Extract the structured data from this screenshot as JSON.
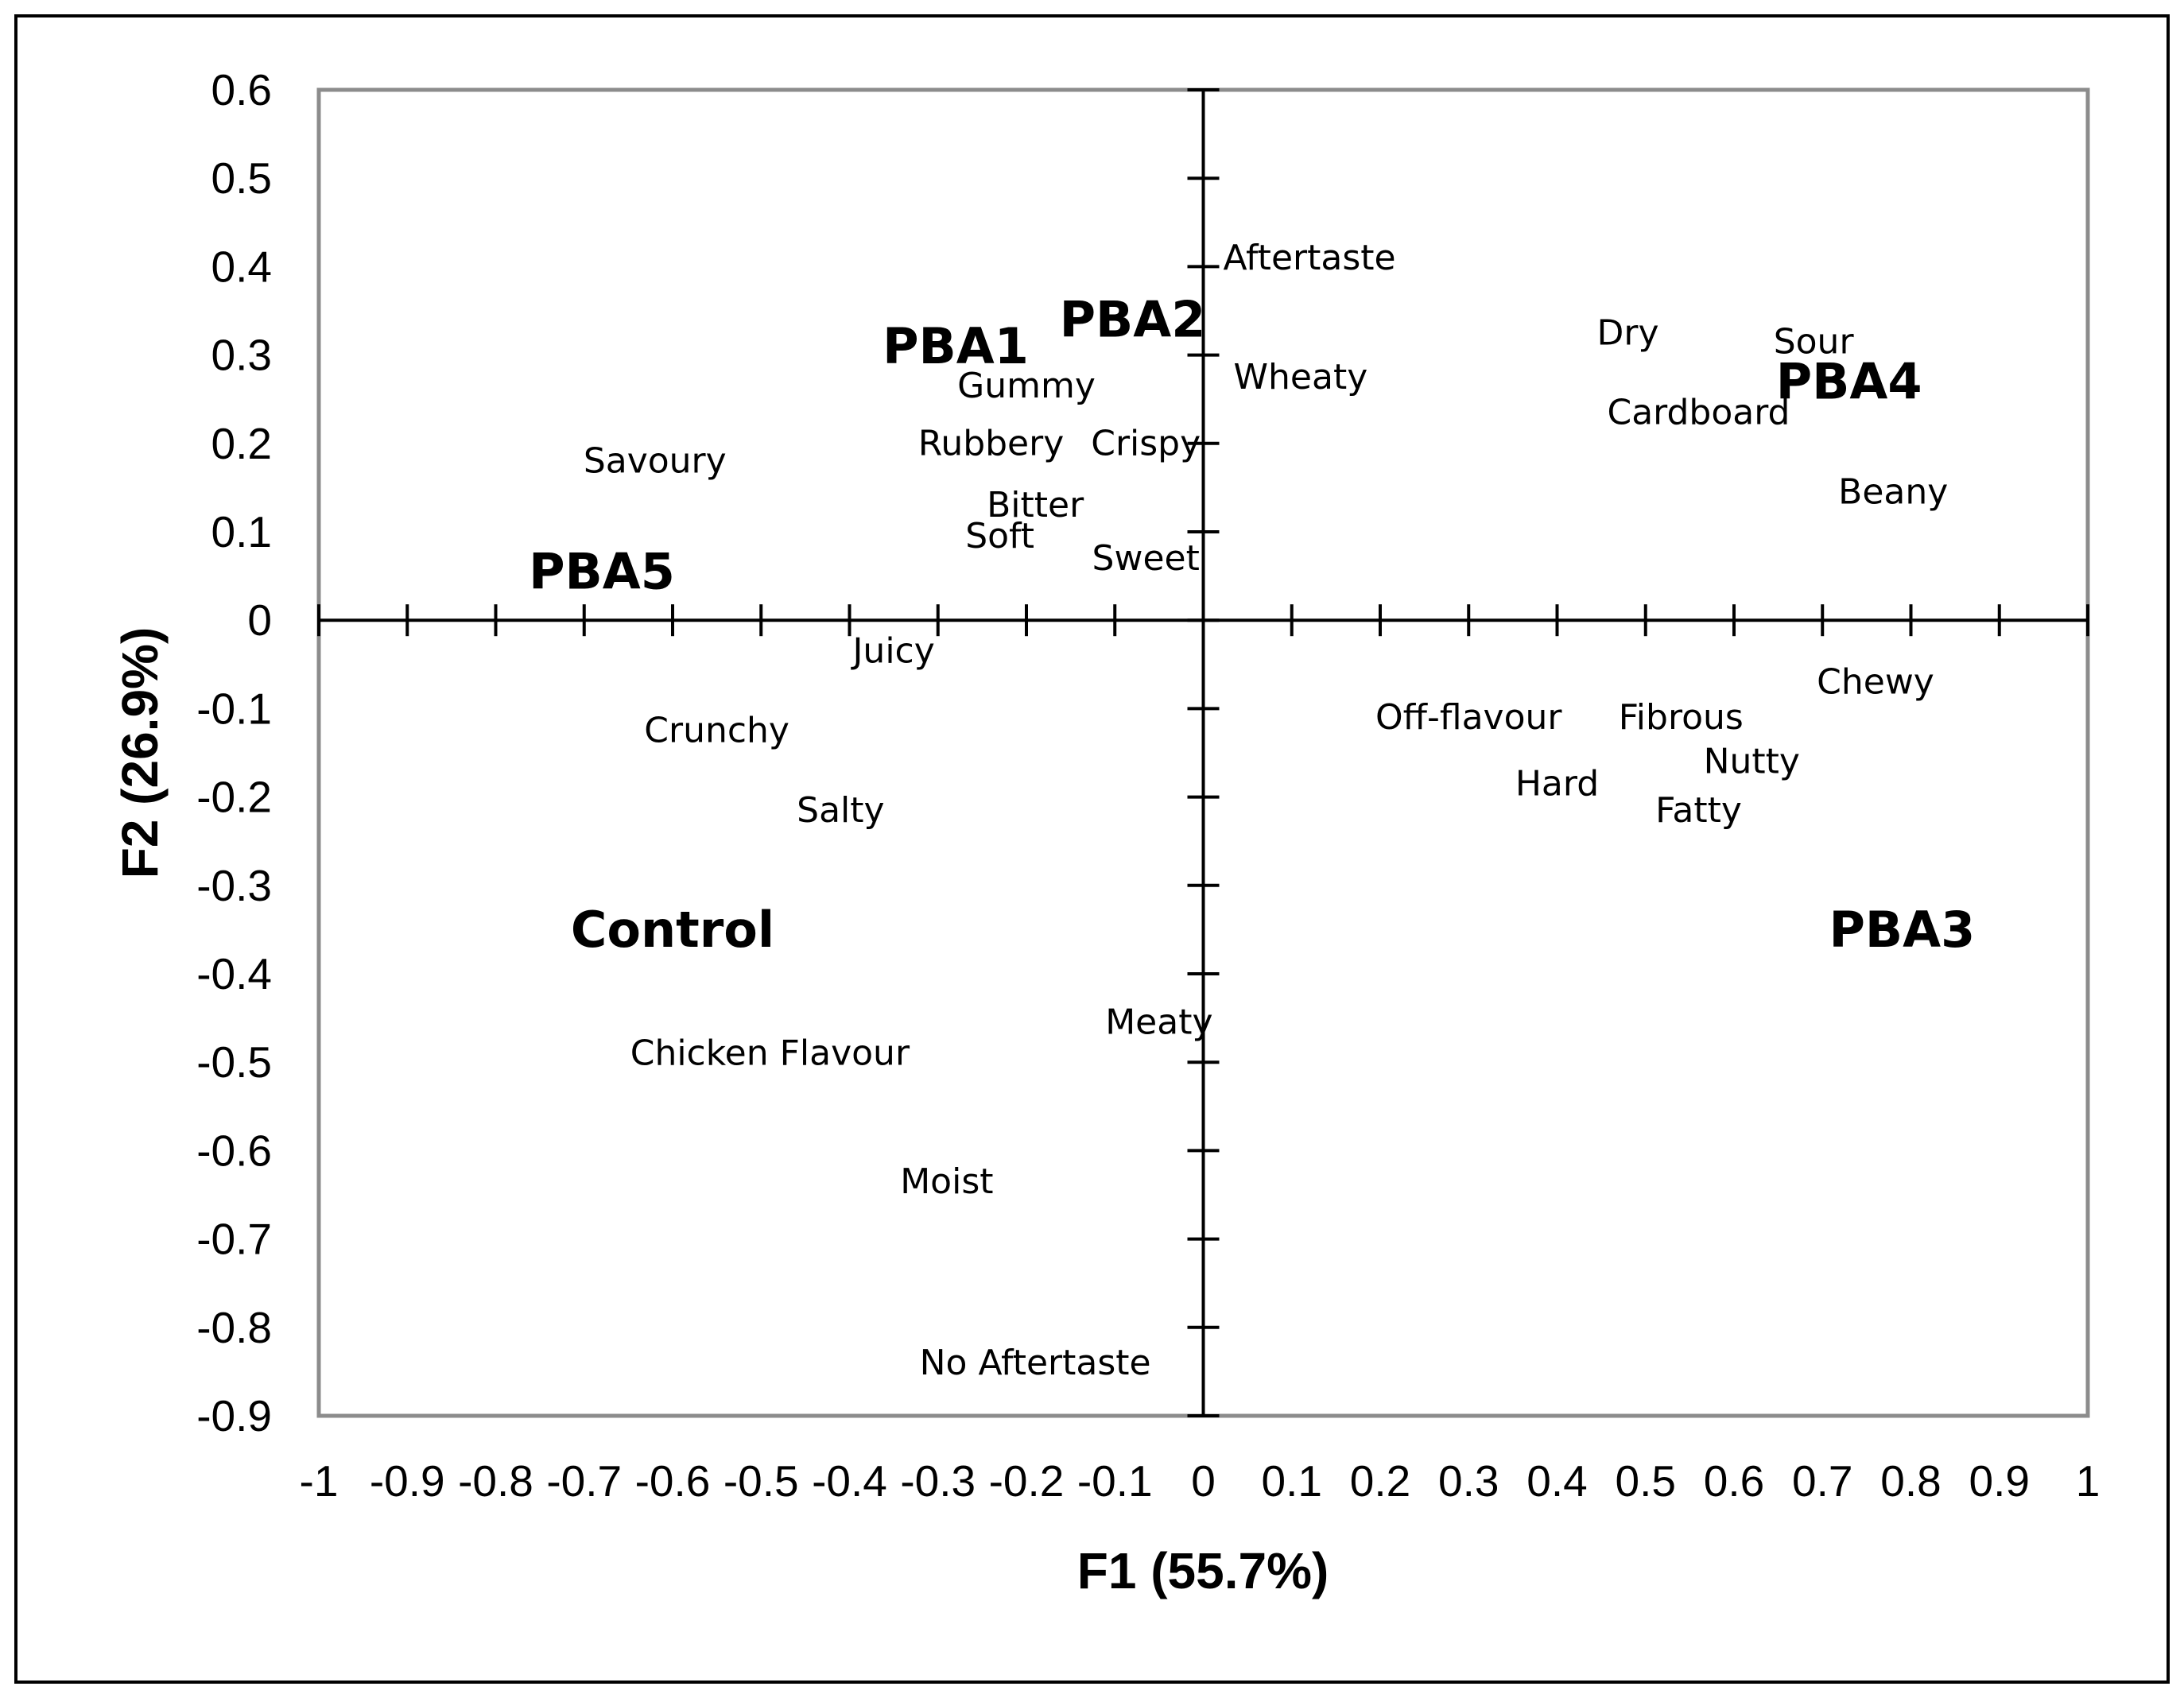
{
  "chart_data": {
    "type": "scatter",
    "xlabel": "F1 (55.7%)",
    "ylabel": "F2 (26.9%)",
    "xlim": [
      -1,
      1
    ],
    "ylim": [
      -0.9,
      0.6
    ],
    "xticks": [
      -1,
      -0.9,
      -0.8,
      -0.7,
      -0.6,
      -0.5,
      -0.4,
      -0.3,
      -0.2,
      -0.1,
      0,
      0.1,
      0.2,
      0.3,
      0.4,
      0.5,
      0.6,
      0.7,
      0.8,
      0.9,
      1
    ],
    "xtick_labels": [
      "-1",
      "-0.9",
      "-0.8",
      "-0.7",
      "-0.6",
      "-0.5",
      "-0.4",
      "-0.3",
      "-0.2",
      "-0.1",
      "0",
      "0.1",
      "0.2",
      "0.3",
      "0.4",
      "0.5",
      "0.6",
      "0.7",
      "0.8",
      "0.9",
      "1"
    ],
    "yticks": [
      0.6,
      0.5,
      0.4,
      0.3,
      0.2,
      0.1,
      0,
      -0.1,
      -0.2,
      -0.3,
      -0.4,
      -0.5,
      -0.6,
      -0.7,
      -0.8,
      -0.9
    ],
    "ytick_labels": [
      "0.6",
      "0.5",
      "0.4",
      "0.3",
      "0.2",
      "0.1",
      "0",
      "-0.1",
      "-0.2",
      "-0.3",
      "-0.4",
      "-0.5",
      "-0.6",
      "-0.7",
      "-0.8",
      "-0.9"
    ],
    "grid": false,
    "series": [
      {
        "kind": "samples",
        "points": [
          {
            "label": "PBA1",
            "x": -0.28,
            "y": 0.31
          },
          {
            "label": "PBA2",
            "x": -0.08,
            "y": 0.34
          },
          {
            "label": "PBA4",
            "x": 0.73,
            "y": 0.27
          },
          {
            "label": "PBA5",
            "x": -0.68,
            "y": 0.055
          },
          {
            "label": "Control",
            "x": -0.6,
            "y": -0.35
          },
          {
            "label": "PBA3",
            "x": 0.79,
            "y": -0.35
          }
        ]
      },
      {
        "kind": "attributes",
        "points": [
          {
            "label": "Aftertaste",
            "x": 0.12,
            "y": 0.41
          },
          {
            "label": "Wheaty",
            "x": 0.11,
            "y": 0.275
          },
          {
            "label": "Dry",
            "x": 0.48,
            "y": 0.325
          },
          {
            "label": "Sour",
            "x": 0.69,
            "y": 0.315
          },
          {
            "label": "Cardboard",
            "x": 0.56,
            "y": 0.235
          },
          {
            "label": "Beany",
            "x": 0.78,
            "y": 0.145
          },
          {
            "label": "Gummy",
            "x": -0.2,
            "y": 0.265
          },
          {
            "label": "Rubbery",
            "x": -0.24,
            "y": 0.2
          },
          {
            "label": "Crispy",
            "x": -0.065,
            "y": 0.2
          },
          {
            "label": "Savoury",
            "x": -0.62,
            "y": 0.18
          },
          {
            "label": "Bitter",
            "x": -0.19,
            "y": 0.13
          },
          {
            "label": "Soft",
            "x": -0.23,
            "y": 0.095
          },
          {
            "label": "Sweet",
            "x": -0.065,
            "y": 0.07
          },
          {
            "label": "Juicy",
            "x": -0.35,
            "y": -0.035
          },
          {
            "label": "Chewy",
            "x": 0.76,
            "y": -0.07
          },
          {
            "label": "Off-flavour",
            "x": 0.3,
            "y": -0.11
          },
          {
            "label": "Fibrous",
            "x": 0.54,
            "y": -0.11
          },
          {
            "label": "Nutty",
            "x": 0.62,
            "y": -0.16
          },
          {
            "label": "Crunchy",
            "x": -0.55,
            "y": -0.125
          },
          {
            "label": "Hard",
            "x": 0.4,
            "y": -0.185
          },
          {
            "label": "Fatty",
            "x": 0.56,
            "y": -0.215
          },
          {
            "label": "Salty",
            "x": -0.41,
            "y": -0.215
          },
          {
            "label": "Meaty",
            "x": -0.05,
            "y": -0.455
          },
          {
            "label": "Chicken Flavour",
            "x": -0.49,
            "y": -0.49
          },
          {
            "label": "Moist",
            "x": -0.29,
            "y": -0.635
          },
          {
            "label": "No Aftertaste",
            "x": -0.19,
            "y": -0.84
          }
        ]
      }
    ]
  }
}
